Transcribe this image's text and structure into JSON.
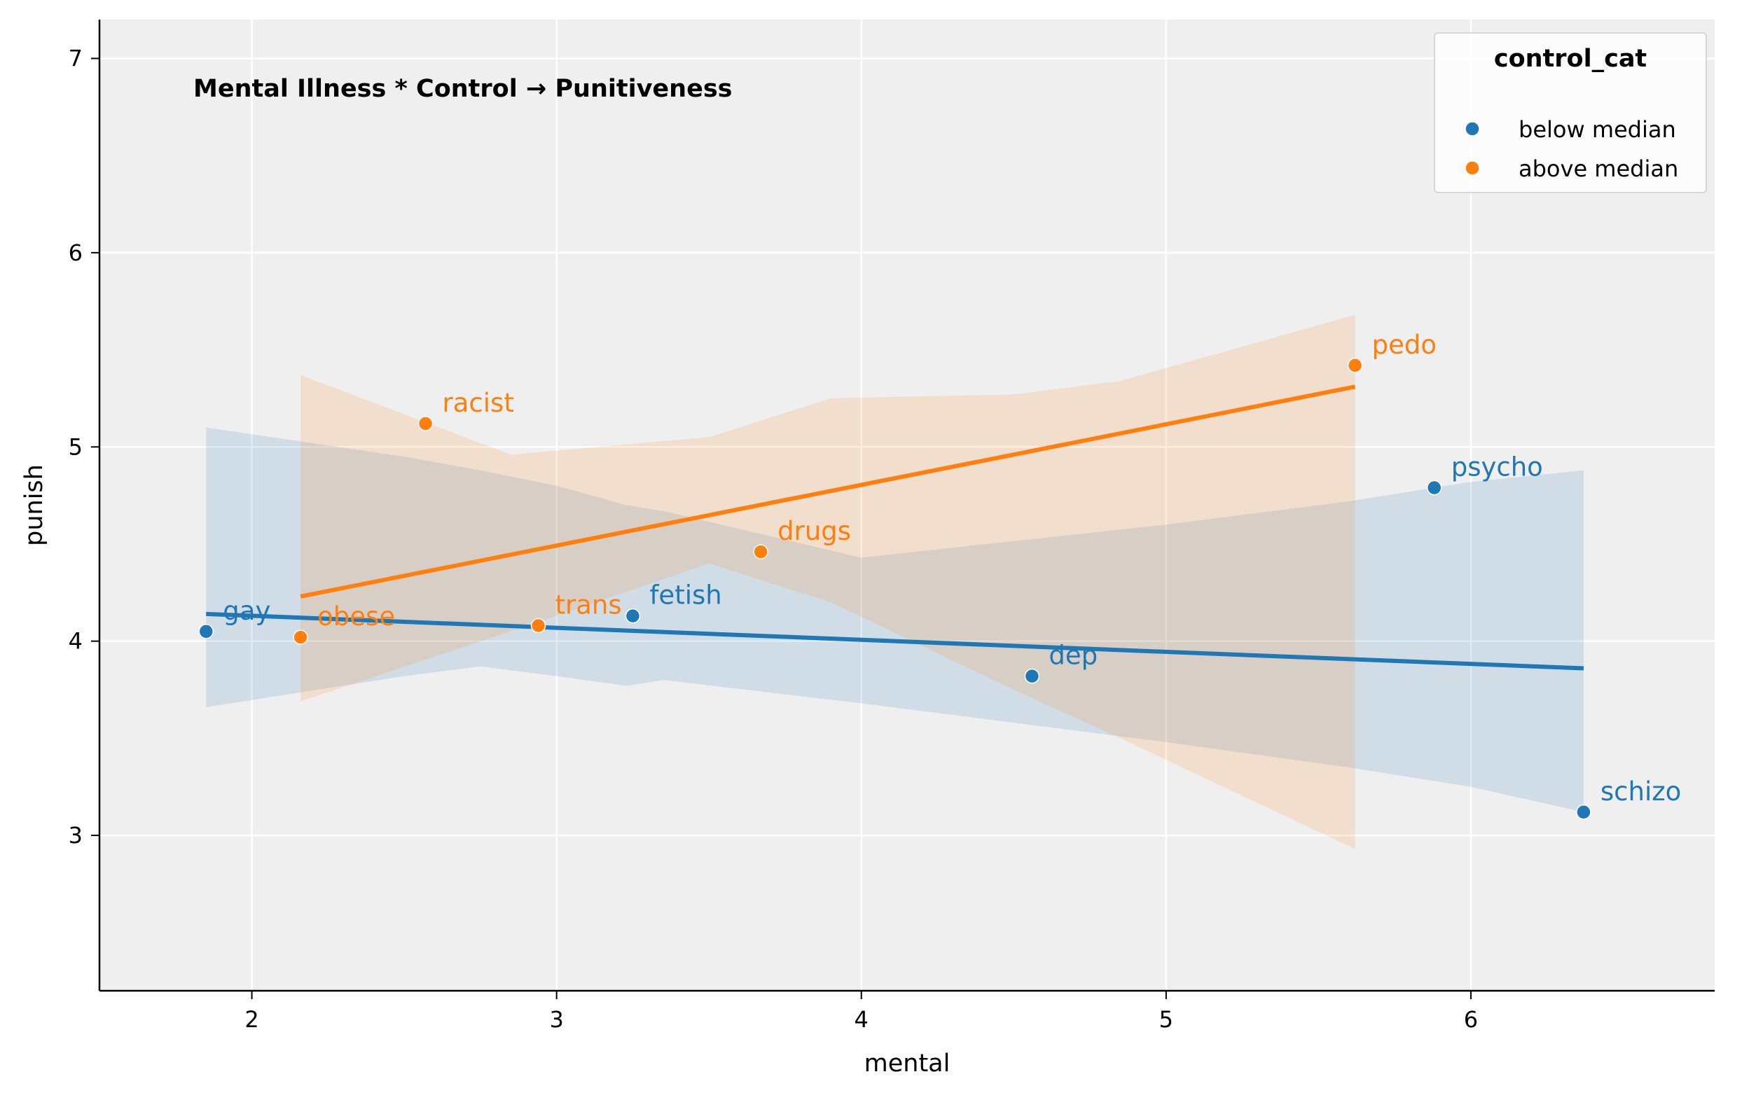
{
  "chart_data": {
    "type": "scatter",
    "title": "Mental Illness * Control → Punitiveness",
    "xlabel": "mental",
    "ylabel": "punish",
    "xlim": [
      1.5,
      6.8
    ],
    "ylim": [
      2.2,
      7.2
    ],
    "xticks": [
      2,
      3,
      4,
      5,
      6
    ],
    "yticks": [
      3,
      4,
      5,
      6,
      7
    ],
    "grid": true,
    "background": "#efefef",
    "legend": {
      "title": "control_cat",
      "placement": "top-right",
      "entries": [
        "below median",
        "above median"
      ]
    },
    "series": [
      {
        "name": "below median",
        "color": "#1f77b4",
        "points": [
          {
            "label": "gay",
            "x": 1.85,
            "y": 4.05
          },
          {
            "label": "fetish",
            "x": 3.25,
            "y": 4.13
          },
          {
            "label": "dep",
            "x": 4.56,
            "y": 3.82
          },
          {
            "label": "psycho",
            "x": 5.88,
            "y": 4.79
          },
          {
            "label": "schizo",
            "x": 6.37,
            "y": 3.12
          }
        ],
        "fit": {
          "x": [
            1.85,
            6.37
          ],
          "y": [
            4.14,
            3.86
          ]
        },
        "ci": [
          {
            "x": 1.85,
            "lo": 3.66,
            "hi": 5.1
          },
          {
            "x": 2.5,
            "lo": 3.82,
            "hi": 4.95
          },
          {
            "x": 2.75,
            "lo": 3.87,
            "hi": 4.88
          },
          {
            "x": 3.0,
            "lo": 3.82,
            "hi": 4.8
          },
          {
            "x": 3.23,
            "lo": 3.77,
            "hi": 4.7
          },
          {
            "x": 3.35,
            "lo": 3.8,
            "hi": 4.67
          },
          {
            "x": 4.0,
            "lo": 3.68,
            "hi": 4.43
          },
          {
            "x": 5.0,
            "lo": 3.48,
            "hi": 4.6
          },
          {
            "x": 5.6,
            "lo": 3.35,
            "hi": 4.72
          },
          {
            "x": 6.0,
            "lo": 3.25,
            "hi": 4.82
          },
          {
            "x": 6.37,
            "lo": 3.12,
            "hi": 4.88
          }
        ]
      },
      {
        "name": "above median",
        "color": "#ff7f0e",
        "points": [
          {
            "label": "obese",
            "x": 2.16,
            "y": 4.02
          },
          {
            "label": "racist",
            "x": 2.57,
            "y": 5.12
          },
          {
            "label": "trans",
            "x": 2.94,
            "y": 4.08
          },
          {
            "label": "drugs",
            "x": 3.67,
            "y": 4.46
          },
          {
            "label": "pedo",
            "x": 5.62,
            "y": 5.42
          }
        ],
        "fit": {
          "x": [
            2.16,
            5.62
          ],
          "y": [
            4.23,
            5.31
          ]
        },
        "ci": [
          {
            "x": 2.16,
            "lo": 3.69,
            "hi": 5.37
          },
          {
            "x": 2.85,
            "lo": 4.05,
            "hi": 4.96
          },
          {
            "x": 3.5,
            "lo": 4.4,
            "hi": 5.05
          },
          {
            "x": 3.9,
            "lo": 4.2,
            "hi": 5.25
          },
          {
            "x": 4.5,
            "lo": 3.75,
            "hi": 5.27
          },
          {
            "x": 4.85,
            "lo": 3.5,
            "hi": 5.34
          },
          {
            "x": 5.62,
            "lo": 2.93,
            "hi": 5.68
          }
        ]
      }
    ]
  }
}
